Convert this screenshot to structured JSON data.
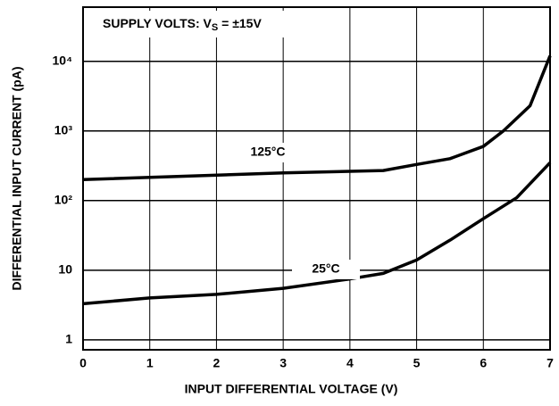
{
  "chart_data": {
    "type": "line",
    "xlabel": "INPUT DIFFERENTIAL VOLTAGE (V)",
    "ylabel": "DIFFERENTIAL INPUT CURRENT (pA)",
    "yscale": "log",
    "grid": true,
    "xlim": [
      0,
      7
    ],
    "ylim": [
      0.72,
      60000
    ],
    "xticks": [
      0,
      1,
      2,
      3,
      4,
      5,
      6,
      7
    ],
    "yticks": [
      1,
      10,
      {
        "value": 100,
        "label": "10²"
      },
      {
        "value": 1000,
        "label": "10³"
      },
      {
        "value": 10000,
        "label": "10⁴"
      }
    ],
    "annotation": {
      "text": "SUPPLY VOLTS:  V",
      "sub": "S",
      "rest": " = ±15V"
    },
    "series": [
      {
        "name": "125°C",
        "color": "#000000",
        "x": [
          0,
          3,
          4.5,
          5,
          5.5,
          6,
          6.3,
          6.7,
          7
        ],
        "values": [
          200,
          250,
          270,
          330,
          400,
          600,
          1000,
          2300,
          12000
        ]
      },
      {
        "name": "25°C",
        "color": "#000000",
        "x": [
          0,
          1,
          2,
          3,
          4,
          4.5,
          5,
          5.5,
          6,
          6.5,
          7
        ],
        "values": [
          3.3,
          4,
          4.5,
          5.5,
          7.5,
          9,
          14,
          27,
          55,
          110,
          350
        ]
      }
    ]
  }
}
